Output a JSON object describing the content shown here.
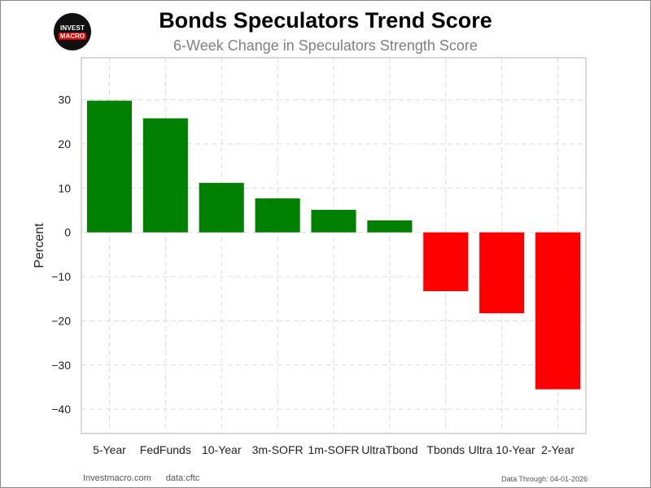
{
  "logo": {
    "line1": "INVEST",
    "line2": "MACRO"
  },
  "chart_data": {
    "type": "bar",
    "title": "Bonds Speculators Trend Score",
    "subtitle": "6-Week Change in Speculators Strength Score",
    "xlabel": "",
    "ylabel": "Percent",
    "categories": [
      "5-Year",
      "FedFunds",
      "10-Year",
      "3m-SOFR",
      "1m-SOFR",
      "UltraTbond",
      "Tbonds",
      "Ultra 10-Year",
      "2-Year"
    ],
    "values": [
      29.8,
      25.8,
      11.2,
      7.7,
      5.1,
      2.7,
      -13.3,
      -18.3,
      -35.5
    ],
    "ylim": [
      -45.5,
      39.5
    ],
    "yticks": [
      30,
      20,
      10,
      0,
      -10,
      -20,
      -30,
      -40
    ],
    "ytick_labels": [
      "30",
      "20",
      "10",
      "0",
      "−10",
      "−20",
      "−30",
      "−40"
    ],
    "grid": true,
    "colors": {
      "positive": "#008000",
      "negative": "#ff0000",
      "grid": "#dddddd",
      "axes": "#cccccc"
    }
  },
  "footer": {
    "site": "Investmacro.com",
    "source": "data:cftc",
    "date_note": "Data Through: 04-01-2026"
  }
}
